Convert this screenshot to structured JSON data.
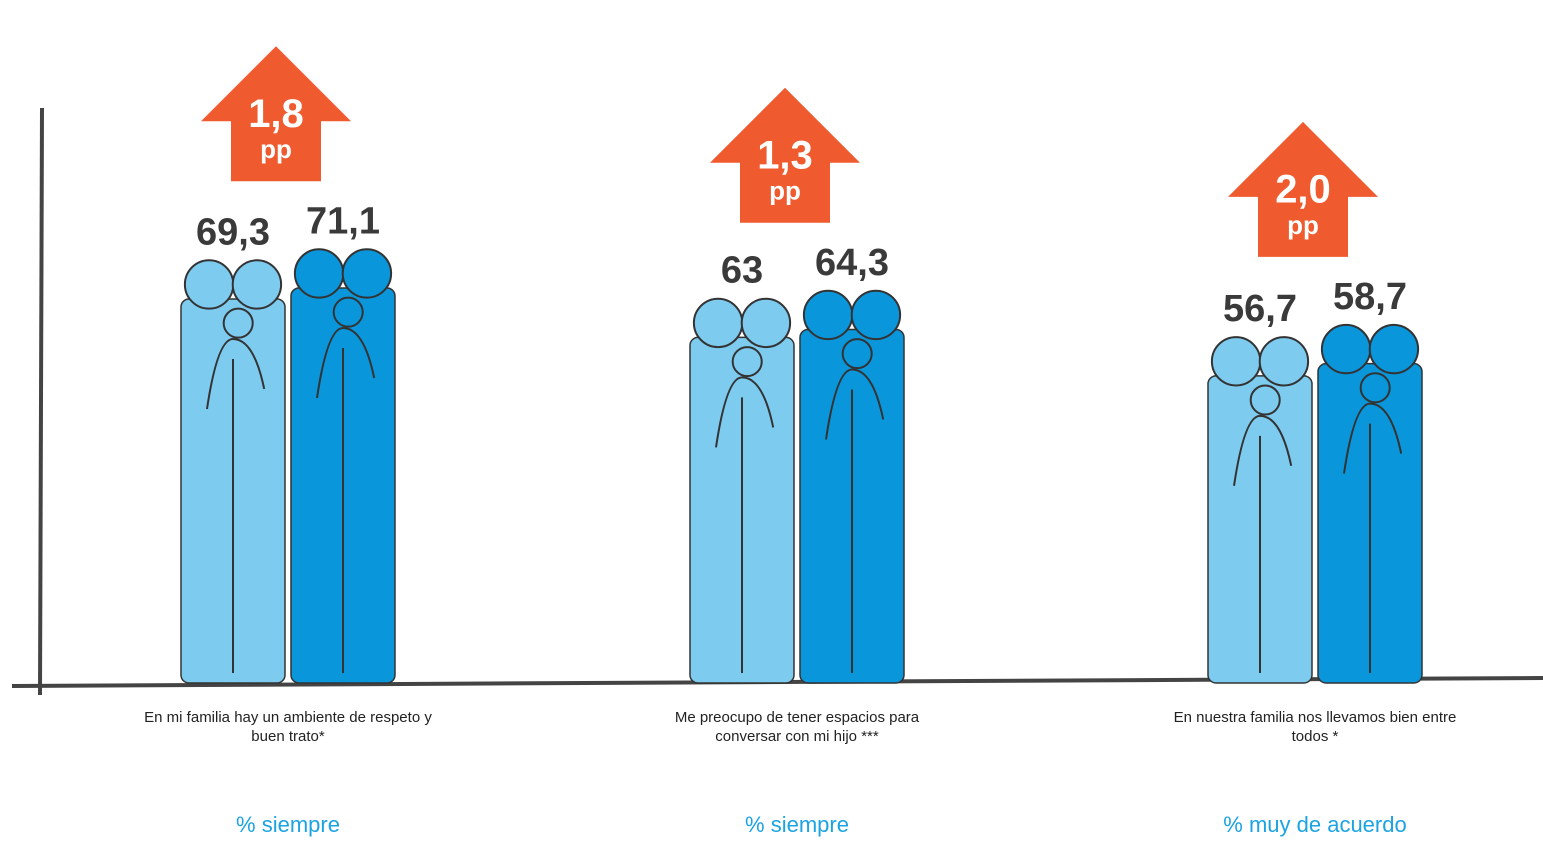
{
  "chart_data": {
    "type": "pictogram-bar",
    "categories": [
      "En mi familia hay un ambiente de respeto y buen trato*",
      "Me preocupo de tener espacios para conversar con mi hijo ***",
      "En nuestra familia nos llevamos bien entre todos *"
    ],
    "measures": [
      "% siempre",
      "% siempre",
      "% muy de acuerdo"
    ],
    "series": [
      {
        "color": "#7ecbf0",
        "values": [
          69.3,
          63,
          56.7
        ],
        "value_labels": [
          "69,3",
          "63",
          "56,7"
        ]
      },
      {
        "color": "#0a96db",
        "values": [
          71.1,
          64.3,
          58.7
        ],
        "value_labels": [
          "71,1",
          "64,3",
          "58,7"
        ]
      }
    ],
    "annotations": [
      {
        "text": "1,8",
        "unit": "pp"
      },
      {
        "text": "1,3",
        "unit": "pp"
      },
      {
        "text": "2,0",
        "unit": "pp"
      }
    ],
    "annotation_color": "#ef5a2f",
    "ylim": [
      0,
      90
    ]
  }
}
